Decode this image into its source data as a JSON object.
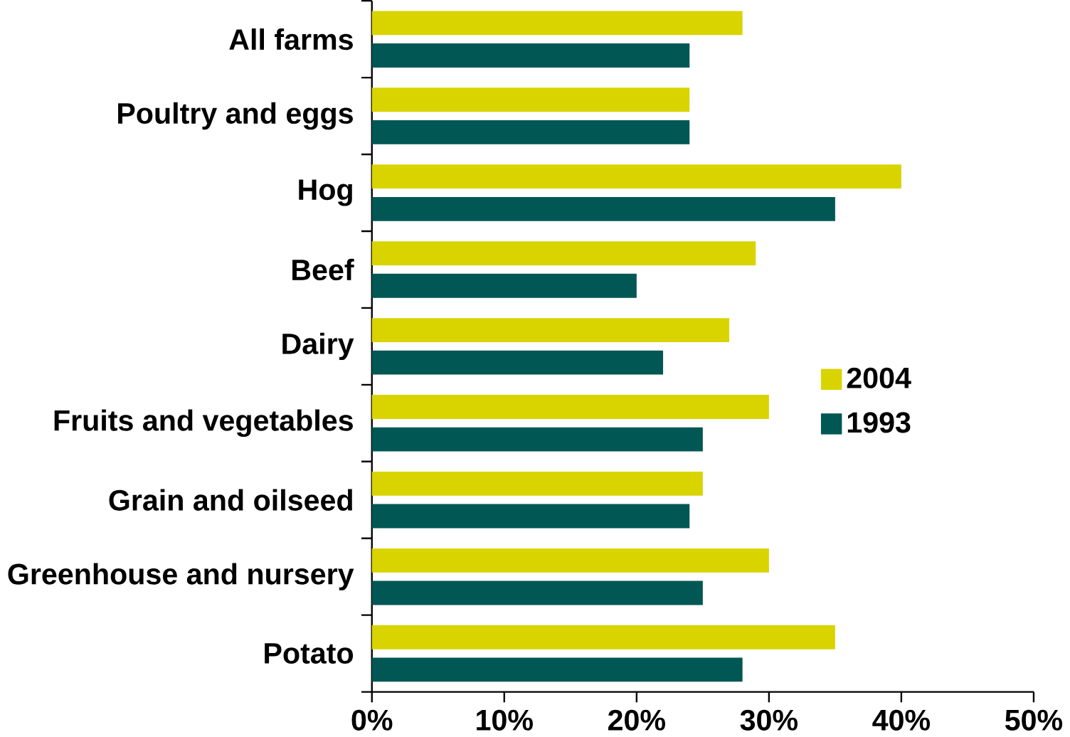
{
  "chart_data": {
    "type": "bar",
    "orientation": "horizontal",
    "categories": [
      "All farms",
      "Poultry and eggs",
      "Hog",
      "Beef",
      "Dairy",
      "Fruits and vegetables",
      "Grain and oilseed",
      "Greenhouse and nursery",
      "Potato"
    ],
    "series": [
      {
        "name": "2004",
        "color": "#d9d400",
        "values": [
          28,
          24,
          40,
          29,
          27,
          30,
          25,
          30,
          35
        ]
      },
      {
        "name": "1993",
        "color": "#005753",
        "values": [
          24,
          24,
          35,
          20,
          22,
          25,
          24,
          25,
          28
        ]
      }
    ],
    "xlim": [
      0,
      50
    ],
    "xticks": [
      {
        "value": 0,
        "label": "0%"
      },
      {
        "value": 10,
        "label": "10%"
      },
      {
        "value": 20,
        "label": "20%"
      },
      {
        "value": 30,
        "label": "30%"
      },
      {
        "value": 40,
        "label": "40%"
      },
      {
        "value": 50,
        "label": "50%"
      }
    ],
    "grid": false,
    "legend": "right"
  }
}
